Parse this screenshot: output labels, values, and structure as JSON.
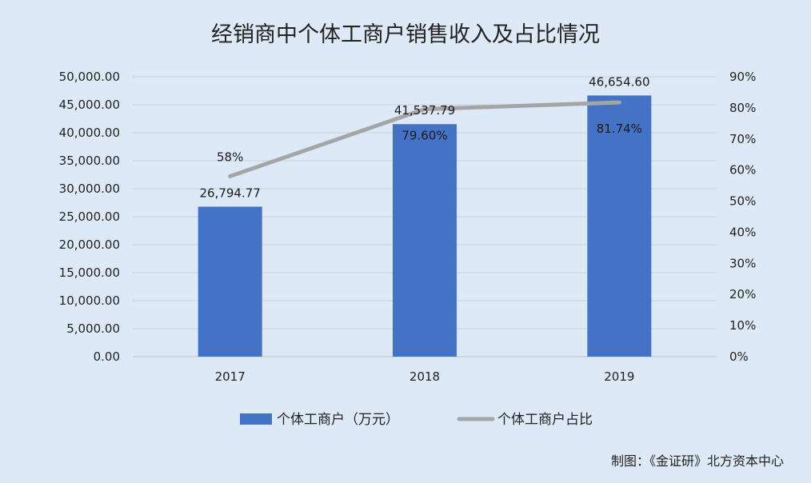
{
  "chart_data": {
    "type": "bar",
    "title": "经销商中个体工商户销售收入及占比情况",
    "categories": [
      "2017",
      "2018",
      "2019"
    ],
    "series": [
      {
        "name": "个体工商户（万元）",
        "type": "bar",
        "axis": "left",
        "values": [
          26794.77,
          41537.79,
          46654.6
        ],
        "labels": [
          "26,794.77",
          "41,537.79",
          "46,654.60"
        ],
        "color": "#4472c4"
      },
      {
        "name": "个体工商户占比",
        "type": "line",
        "axis": "right",
        "values": [
          58,
          79.6,
          81.74
        ],
        "labels": [
          "58%",
          "79.60%",
          "81.74%"
        ],
        "color": "#a5a5a5"
      }
    ],
    "y_left": {
      "ylim": [
        0,
        50000
      ],
      "ticks": [
        "0.00",
        "5,000.00",
        "10,000.00",
        "15,000.00",
        "20,000.00",
        "25,000.00",
        "30,000.00",
        "35,000.00",
        "40,000.00",
        "45,000.00",
        "50,000.00"
      ]
    },
    "y_right": {
      "ylim": [
        0,
        90
      ],
      "ticks": [
        "0%",
        "10%",
        "20%",
        "30%",
        "40%",
        "50%",
        "60%",
        "70%",
        "80%",
        "90%"
      ]
    },
    "grid": true,
    "legend": "bottom",
    "credit": "制图：《金证研》北方资本中心"
  }
}
